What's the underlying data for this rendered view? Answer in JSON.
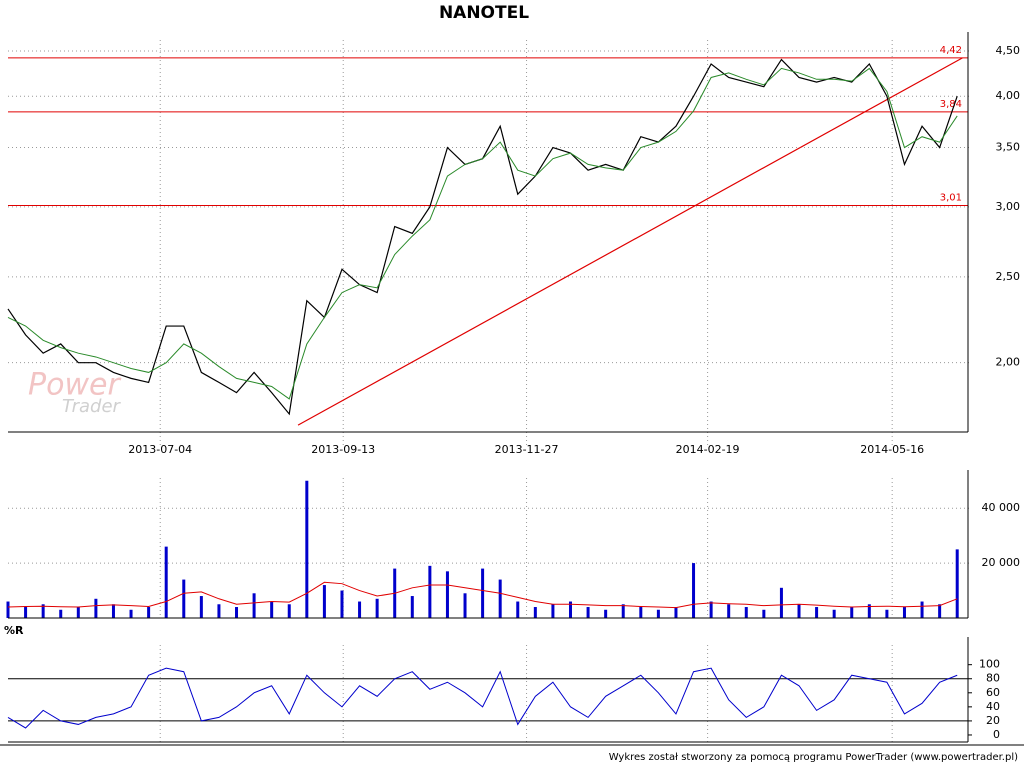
{
  "chart_data": [
    {
      "type": "line",
      "title": "NANOTEL",
      "log_scale": true,
      "grid": true,
      "x": [
        0,
        1,
        2,
        3,
        4,
        5,
        6,
        7,
        8,
        9,
        10,
        11,
        12,
        13,
        14,
        15,
        16,
        17,
        18,
        19,
        20,
        21,
        22,
        23,
        24,
        25,
        26,
        27,
        28,
        29,
        30,
        31,
        32,
        33,
        34,
        35,
        36,
        37,
        38,
        39,
        40,
        41,
        42,
        43,
        44,
        45,
        46,
        47,
        48,
        49,
        50,
        51,
        52,
        53,
        54
      ],
      "xlim": [
        0,
        54.5
      ],
      "xticks": [
        {
          "value": 8.66,
          "label": "2013-07-04"
        },
        {
          "value": 19.07,
          "label": "2013-09-13"
        },
        {
          "value": 29.5,
          "label": "2013-11-27"
        },
        {
          "value": 39.8,
          "label": "2014-02-19"
        },
        {
          "value": 50.3,
          "label": "2014-05-16"
        }
      ],
      "ylim": [
        1.67,
        4.63
      ],
      "yticks": [
        {
          "value": 2.0,
          "label": "2,00"
        },
        {
          "value": 2.5,
          "label": "2,50"
        },
        {
          "value": 3.0,
          "label": "3,00"
        },
        {
          "value": 3.5,
          "label": "3,50"
        },
        {
          "value": 4.0,
          "label": "4,00"
        },
        {
          "value": 4.5,
          "label": "4,50"
        }
      ],
      "series": [
        {
          "color": "#000000",
          "values": [
            2.3,
            2.15,
            2.05,
            2.1,
            2.0,
            2.0,
            1.95,
            1.92,
            1.9,
            2.2,
            2.2,
            1.95,
            1.9,
            1.85,
            1.95,
            1.85,
            1.75,
            2.35,
            2.25,
            2.55,
            2.45,
            2.4,
            2.85,
            2.8,
            3.0,
            3.5,
            3.35,
            3.4,
            3.7,
            3.1,
            3.25,
            3.5,
            3.45,
            3.3,
            3.35,
            3.3,
            3.6,
            3.55,
            3.7,
            4.0,
            4.35,
            4.2,
            4.15,
            4.1,
            4.4,
            4.2,
            4.15,
            4.2,
            4.15,
            4.35,
            4.0,
            3.35,
            3.7,
            3.5,
            4.0
          ]
        },
        {
          "color": "#2a8a2a",
          "values": [
            2.25,
            2.2,
            2.12,
            2.08,
            2.05,
            2.03,
            2.0,
            1.97,
            1.95,
            2.0,
            2.1,
            2.05,
            1.98,
            1.92,
            1.9,
            1.88,
            1.82,
            2.1,
            2.25,
            2.4,
            2.45,
            2.43,
            2.65,
            2.78,
            2.9,
            3.25,
            3.35,
            3.4,
            3.55,
            3.3,
            3.25,
            3.4,
            3.45,
            3.35,
            3.32,
            3.3,
            3.5,
            3.55,
            3.65,
            3.85,
            4.2,
            4.25,
            4.18,
            4.12,
            4.3,
            4.25,
            4.18,
            4.18,
            4.16,
            4.3,
            4.05,
            3.5,
            3.6,
            3.55,
            3.8
          ]
        }
      ],
      "hlines": [
        {
          "value": 4.42,
          "label": "4,42",
          "color": "#e00000"
        },
        {
          "value": 3.84,
          "label": "3,84",
          "color": "#e00000"
        },
        {
          "value": 3.01,
          "label": "3,01",
          "color": "#e00000"
        }
      ],
      "trend_line": {
        "color": "#e00000",
        "x": [
          16.5,
          54.3
        ],
        "values": [
          1.7,
          4.42
        ]
      },
      "watermark": [
        "Power",
        "Trader"
      ]
    },
    {
      "type": "bar",
      "color": "#0000cc",
      "x": [
        0,
        1,
        2,
        3,
        4,
        5,
        6,
        7,
        8,
        9,
        10,
        11,
        12,
        13,
        14,
        15,
        16,
        17,
        18,
        19,
        20,
        21,
        22,
        23,
        24,
        25,
        26,
        27,
        28,
        29,
        30,
        31,
        32,
        33,
        34,
        35,
        36,
        37,
        38,
        39,
        40,
        41,
        42,
        43,
        44,
        45,
        46,
        47,
        48,
        49,
        50,
        51,
        52,
        53,
        54
      ],
      "xlim": [
        0,
        54.5
      ],
      "ylim": [
        0,
        51000
      ],
      "yticks": [
        {
          "value": 20000,
          "label": "20 000"
        },
        {
          "value": 40000,
          "label": "40 000"
        }
      ],
      "values": [
        6000,
        4000,
        5000,
        3000,
        4000,
        7000,
        5000,
        3000,
        4000,
        26000,
        14000,
        8000,
        5000,
        4000,
        9000,
        6000,
        5000,
        50000,
        12000,
        10000,
        6000,
        7000,
        18000,
        8000,
        19000,
        17000,
        9000,
        18000,
        14000,
        6000,
        4000,
        5000,
        6000,
        4000,
        3000,
        5000,
        4000,
        3000,
        4000,
        20000,
        6000,
        5000,
        4000,
        3000,
        11000,
        5000,
        4000,
        3000,
        4000,
        5000,
        3000,
        4000,
        6000,
        5000,
        25000
      ],
      "average": {
        "color": "#e00000",
        "values": [
          4000,
          4200,
          4300,
          4100,
          4000,
          4500,
          4800,
          4500,
          4200,
          6000,
          9000,
          9500,
          7000,
          5000,
          5500,
          6000,
          5800,
          9000,
          13000,
          12500,
          10000,
          8000,
          9000,
          11000,
          12000,
          12000,
          11000,
          10000,
          9000,
          7500,
          6000,
          5000,
          5000,
          4800,
          4500,
          4500,
          4200,
          4000,
          3800,
          5000,
          5500,
          5200,
          5000,
          4500,
          4800,
          5000,
          4700,
          4300,
          4000,
          4200,
          4300,
          4100,
          4300,
          4500,
          7000
        ]
      }
    },
    {
      "type": "line",
      "title": "%R",
      "color": "#0000cc",
      "x": [
        0,
        1,
        2,
        3,
        4,
        5,
        6,
        7,
        8,
        9,
        10,
        11,
        12,
        13,
        14,
        15,
        16,
        17,
        18,
        19,
        20,
        21,
        22,
        23,
        24,
        25,
        26,
        27,
        28,
        29,
        30,
        31,
        32,
        33,
        34,
        35,
        36,
        37,
        38,
        39,
        40,
        41,
        42,
        43,
        44,
        45,
        46,
        47,
        48,
        49,
        50,
        51,
        52,
        53,
        54
      ],
      "xlim": [
        0,
        54.5
      ],
      "ylim": [
        -10,
        128
      ],
      "yticks": [
        0,
        20,
        40,
        60,
        80,
        100
      ],
      "levels": [
        20,
        80
      ],
      "values": [
        25,
        10,
        35,
        20,
        15,
        25,
        30,
        40,
        85,
        95,
        90,
        20,
        25,
        40,
        60,
        70,
        30,
        85,
        60,
        40,
        70,
        55,
        80,
        90,
        65,
        75,
        60,
        40,
        90,
        15,
        55,
        75,
        40,
        25,
        55,
        70,
        85,
        60,
        30,
        90,
        95,
        50,
        25,
        40,
        85,
        70,
        35,
        50,
        85,
        80,
        75,
        30,
        45,
        75,
        85
      ]
    }
  ],
  "footer": "Wykres został stworzony za pomocą programu PowerTrader (www.powertrader.pl)"
}
